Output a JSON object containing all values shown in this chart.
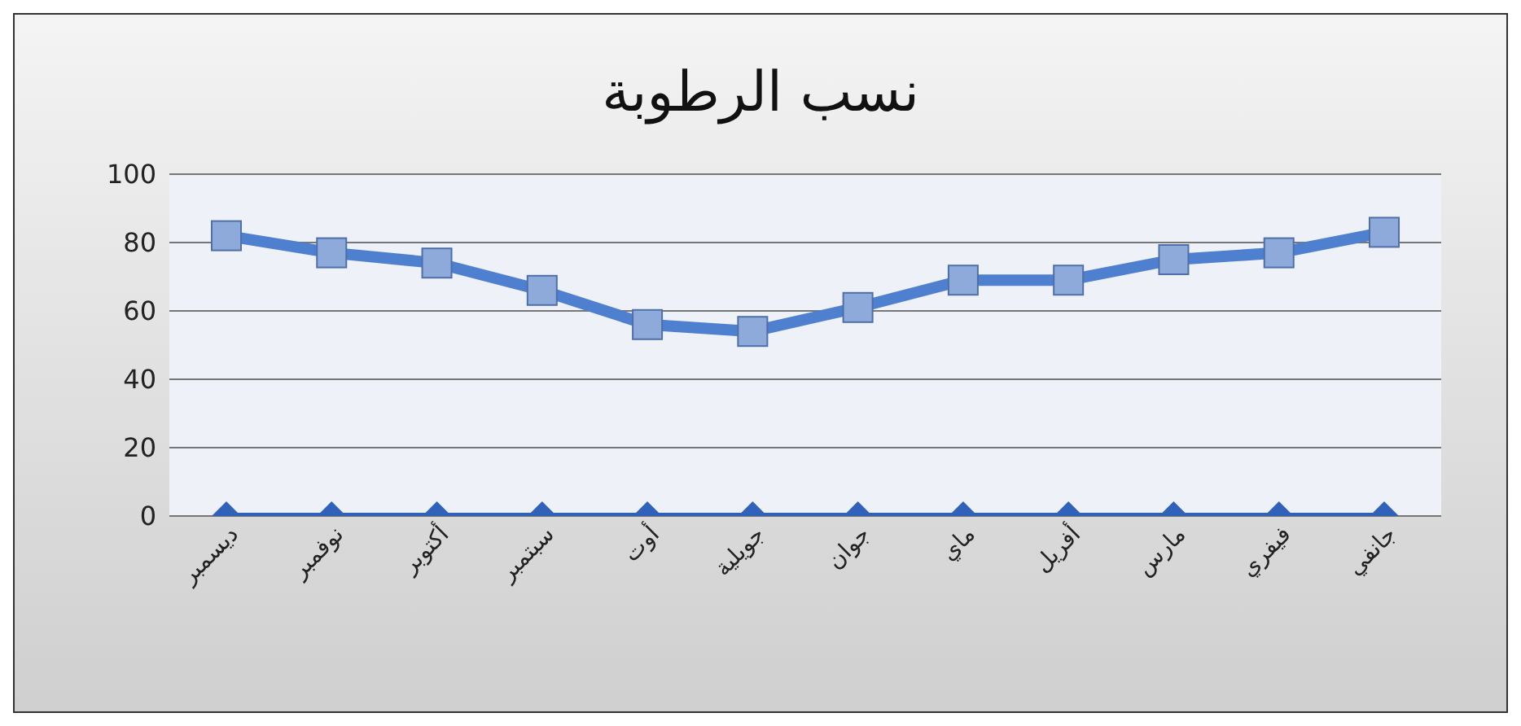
{
  "chart_data": {
    "type": "line",
    "title": "نسب الرطوبة",
    "categories": [
      "ديسمبر",
      "نوفمبر",
      "أكتوبر",
      "سبتمبر",
      "أوت",
      "جويلية",
      "جوان",
      "ماي",
      "أفريل",
      "مارس",
      "فيفري",
      "جانفي"
    ],
    "series": [
      {
        "color": "#4f7fcf",
        "marker": "square",
        "values": [
          82,
          77,
          74,
          66,
          56,
          54,
          61,
          69,
          69,
          75,
          77,
          83
        ]
      },
      {
        "color": "#2f62b8",
        "marker": "diamond",
        "values": [
          0,
          0,
          0,
          0,
          0,
          0,
          0,
          0,
          0,
          0,
          0,
          0
        ]
      }
    ],
    "ylim": [
      0,
      100
    ],
    "yticks": [
      0,
      20,
      40,
      60,
      80,
      100
    ],
    "grid": "y",
    "legend": false
  }
}
